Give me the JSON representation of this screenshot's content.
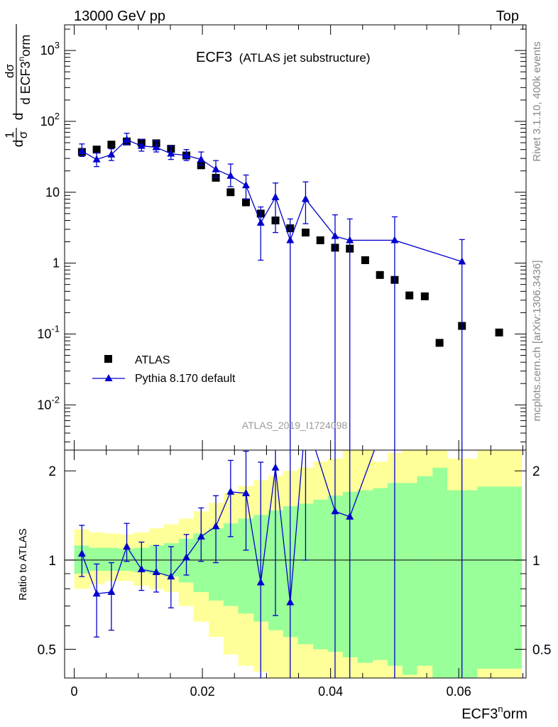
{
  "header": {
    "energy_label": "13000 GeV pp",
    "process_label": "Top",
    "plot_title": "ECF3",
    "plot_subtitle": "(ATLAS jet substructure)",
    "analysis_id": "ATLAS_2019_I1724098",
    "rivet_label": "Rivet 3.1.10,  400k events",
    "mcplots_label": "mcplots.cern.ch [arXiv:1306.3436]"
  },
  "axes": {
    "ylabel_top": "1/σ dσ/d ECF3^norm",
    "ylabel_bottom": "Ratio to ATLAS",
    "xlabel": "ECF3^norm",
    "xticks": [
      "0",
      "0.02",
      "0.04",
      "0.06"
    ],
    "yticks_top": [
      "10^-2",
      "10^-1",
      "1",
      "10",
      "10^2",
      "10^3"
    ],
    "yticks_bottom": [
      "0.5",
      "1",
      "2"
    ]
  },
  "legend": {
    "atlas": "ATLAS",
    "pythia": "Pythia 8.170 default"
  },
  "colors": {
    "data": "#000000",
    "mc": "#0000cc",
    "band_inner": "#99ff99",
    "band_outer": "#ffff99"
  },
  "chart_data": {
    "type": "scatter",
    "title": "ECF3 (ATLAS jet substructure)",
    "xlabel": "ECF3^norm",
    "ylabel": "1/σ dσ/d ECF3^norm",
    "xlim": [
      -0.0015,
      0.0705
    ],
    "ylim": [
      0.0023,
      2300
    ],
    "yscale": "log",
    "ratio_ylim": [
      0.4,
      2.35
    ],
    "ratio_yscale": "log",
    "legend_position": "lower-left",
    "atlas": {
      "name": "ATLAS",
      "x": [
        0.0012,
        0.0035,
        0.0058,
        0.0082,
        0.0105,
        0.0128,
        0.0151,
        0.0175,
        0.0198,
        0.0221,
        0.0244,
        0.0268,
        0.0291,
        0.0314,
        0.0337,
        0.0361,
        0.0384,
        0.0407,
        0.043,
        0.0454,
        0.0477,
        0.05,
        0.0523,
        0.0547,
        0.057,
        0.0605,
        0.0663
      ],
      "y": [
        37,
        40,
        47,
        52,
        50,
        49,
        41,
        33,
        24,
        16,
        10,
        7.2,
        5.0,
        4.0,
        3.1,
        2.7,
        2.1,
        1.65,
        1.6,
        1.1,
        0.68,
        0.58,
        0.35,
        0.34,
        0.075,
        0.13,
        0.105
      ],
      "band_edges": [
        0.0,
        0.0023,
        0.0047,
        0.007,
        0.0093,
        0.0117,
        0.014,
        0.0163,
        0.0186,
        0.021,
        0.0233,
        0.0256,
        0.028,
        0.0303,
        0.0326,
        0.0349,
        0.0373,
        0.0396,
        0.0419,
        0.0442,
        0.0466,
        0.0489,
        0.0512,
        0.0535,
        0.0559,
        0.0582,
        0.0629,
        0.0698
      ],
      "band_inner_lo": [
        0.9,
        0.92,
        0.92,
        0.92,
        0.91,
        0.9,
        0.88,
        0.84,
        0.78,
        0.73,
        0.7,
        0.66,
        0.62,
        0.58,
        0.55,
        0.52,
        0.5,
        0.49,
        0.47,
        0.45,
        0.46,
        0.44,
        0.41,
        0.44,
        0.4,
        0.4,
        0.43
      ],
      "band_inner_hi": [
        1.12,
        1.1,
        1.1,
        1.09,
        1.1,
        1.12,
        1.14,
        1.18,
        1.23,
        1.28,
        1.33,
        1.38,
        1.42,
        1.47,
        1.52,
        1.55,
        1.6,
        1.65,
        1.7,
        1.72,
        1.75,
        1.82,
        1.82,
        1.92,
        2.05,
        1.72,
        1.77
      ],
      "band_outer_lo": [
        0.8,
        0.83,
        0.85,
        0.85,
        0.82,
        0.8,
        0.78,
        0.7,
        0.62,
        0.55,
        0.48,
        0.44,
        0.42,
        0.4,
        0.4,
        0.4,
        0.4,
        0.4,
        0.4,
        0.4,
        0.4,
        0.4,
        0.4,
        0.4,
        0.4,
        0.4,
        0.4
      ],
      "band_outer_hi": [
        1.27,
        1.24,
        1.23,
        1.22,
        1.24,
        1.28,
        1.32,
        1.38,
        1.46,
        1.56,
        1.68,
        1.78,
        1.86,
        1.93,
        2.0,
        2.05,
        2.15,
        2.2,
        2.35,
        2.35,
        2.15,
        2.3,
        2.35,
        2.35,
        2.35,
        2.2,
        2.35
      ]
    },
    "pythia": {
      "name": "Pythia 8.170 default",
      "x": [
        0.0012,
        0.0035,
        0.0058,
        0.0082,
        0.0105,
        0.0128,
        0.0151,
        0.0175,
        0.0198,
        0.0221,
        0.0244,
        0.0268,
        0.0291,
        0.0314,
        0.0337,
        0.0361,
        0.0407,
        0.043,
        0.05,
        0.0605
      ],
      "y": [
        38,
        29,
        34,
        55,
        45,
        43,
        35,
        33,
        29,
        21,
        17,
        12.5,
        3.7,
        8.5,
        2.1,
        8.0,
        2.4,
        2.1,
        2.1,
        1.05
      ],
      "err_lo": [
        6,
        6,
        6,
        8,
        7,
        6,
        6,
        5,
        5,
        5,
        5,
        4.5,
        2.6,
        5.8,
        2.1,
        4.4,
        2.4,
        2.1,
        2.1,
        1.05
      ],
      "err_hi": [
        10,
        7,
        7,
        13,
        11,
        10,
        10,
        7,
        8,
        7,
        8,
        5,
        2.5,
        5,
        2.1,
        6,
        2.4,
        2.1,
        2.4,
        1.1
      ],
      "ratio": [
        1.05,
        0.77,
        0.78,
        1.11,
        0.93,
        0.91,
        0.88,
        1.02,
        1.2,
        1.3,
        1.7,
        1.68,
        0.84,
        2.05,
        0.72,
        3.0,
        1.46,
        1.4,
        3.6,
        8.0
      ],
      "ratio_lo": [
        0.17,
        0.22,
        0.2,
        0.12,
        0.14,
        0.13,
        0.19,
        0.13,
        0.21,
        0.32,
        0.5,
        0.6,
        0.84,
        1.4,
        0.72,
        2.0,
        1.46,
        1.4,
        3.6,
        8.0
      ],
      "ratio_hi": [
        0.26,
        0.2,
        0.2,
        0.22,
        0.22,
        0.21,
        0.23,
        0.2,
        0.3,
        0.35,
        0.47,
        0.65,
        1.3,
        1.8,
        1.8,
        2.6,
        2.6,
        2.6,
        4.0,
        8.4
      ]
    }
  }
}
